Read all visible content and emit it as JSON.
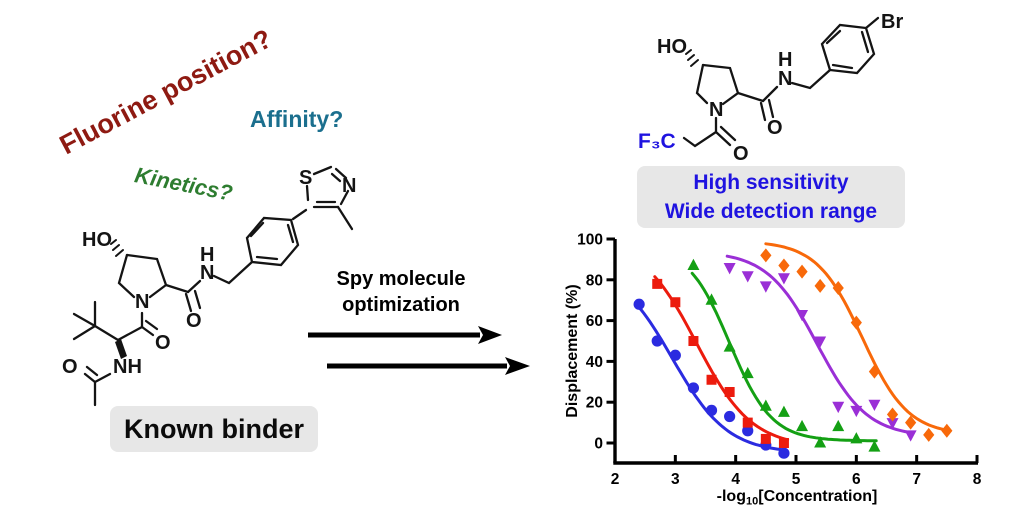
{
  "questions": {
    "fluorine": "Fluorine position?",
    "affinity": "Affinity?",
    "kinetics": "Kinetics?"
  },
  "known_binder_label": "Known binder",
  "arrow_label": {
    "line1": "Spy molecule",
    "line2": "optimization"
  },
  "result_box": {
    "line1": "High sensitivity",
    "line2": "Wide detection range"
  },
  "colors": {
    "fluorine_text": "#8e1a12",
    "affinity_text": "#1b6f8e",
    "kinetics_text": "#2e7d30",
    "highlight_text": "#1f13e0",
    "label_box_bg": "#e7e7e7"
  },
  "left_molecule": {
    "labels": {
      "ho": "HO",
      "s": "S",
      "n_thiazole": "N",
      "h_amide": "H",
      "n_amide": "N",
      "o_amide": "O",
      "n_ring": "N",
      "o_acyl": "O",
      "nh_acetamide": "NH",
      "o_acetyl": "O"
    }
  },
  "right_molecule": {
    "labels": {
      "ho": "HO",
      "f3c": "F₃C",
      "o_acyl": "O",
      "o_amide": "O",
      "h_amide": "H",
      "n_amide": "N",
      "n_ring": "N",
      "br": "Br"
    }
  },
  "chart_data": {
    "type": "scatter",
    "title": "",
    "ylabel": "Displacement (%)",
    "xlabel": "-log10[Concentration]",
    "xlabel_parts": {
      "prefix": "-log",
      "sub": "10",
      "suffix": "[Concentration]"
    },
    "xlim": [
      2,
      8
    ],
    "ylim": [
      -10,
      100
    ],
    "xticks": [
      2,
      3,
      4,
      5,
      6,
      7,
      8
    ],
    "yticks": [
      0,
      20,
      40,
      60,
      80,
      100
    ],
    "grid": false,
    "legend": "none",
    "series": [
      {
        "name": "blue-circles",
        "marker": "circle",
        "color": "#2b2be0",
        "points": [
          [
            2.4,
            68
          ],
          [
            2.7,
            50
          ],
          [
            3.0,
            43
          ],
          [
            3.3,
            27
          ],
          [
            3.6,
            16
          ],
          [
            3.9,
            13
          ],
          [
            4.2,
            6
          ],
          [
            4.5,
            -1
          ],
          [
            4.8,
            -5
          ]
        ],
        "fit": {
          "top": 88,
          "bottom": -5,
          "logec50": 2.95,
          "hill": 0.95,
          "range": [
            2.38,
            4.85
          ]
        }
      },
      {
        "name": "red-squares",
        "marker": "square",
        "color": "#ec1b0d",
        "points": [
          [
            2.7,
            78
          ],
          [
            3.0,
            69
          ],
          [
            3.3,
            50
          ],
          [
            3.6,
            31
          ],
          [
            3.9,
            25
          ],
          [
            4.2,
            10
          ],
          [
            4.5,
            2
          ],
          [
            4.8,
            0
          ]
        ],
        "fit": {
          "top": 100,
          "bottom": -2,
          "logec50": 3.35,
          "hill": 0.95,
          "range": [
            2.66,
            4.87
          ]
        }
      },
      {
        "name": "green-triangles",
        "marker": "triangle-up",
        "color": "#14a014",
        "points": [
          [
            3.3,
            87
          ],
          [
            3.6,
            70
          ],
          [
            3.9,
            47
          ],
          [
            4.2,
            34
          ],
          [
            4.5,
            18
          ],
          [
            4.8,
            15
          ],
          [
            5.1,
            8
          ],
          [
            5.4,
            0
          ],
          [
            5.7,
            8
          ],
          [
            6.0,
            2
          ],
          [
            6.3,
            -2
          ]
        ],
        "fit": {
          "top": 97,
          "bottom": 1,
          "logec50": 3.9,
          "hill": 1.25,
          "range": [
            3.28,
            6.35
          ]
        }
      },
      {
        "name": "purple-triangles",
        "marker": "triangle-down",
        "color": "#9a2fd6",
        "points": [
          [
            3.9,
            86
          ],
          [
            4.2,
            82
          ],
          [
            4.5,
            77
          ],
          [
            4.8,
            81
          ],
          [
            5.1,
            63
          ],
          [
            5.4,
            50
          ],
          [
            5.7,
            18
          ],
          [
            6.0,
            16
          ],
          [
            6.3,
            19
          ],
          [
            6.6,
            10
          ],
          [
            6.9,
            4
          ]
        ],
        "fit": {
          "top": 94,
          "bottom": 3,
          "logec50": 5.35,
          "hill": 1.05,
          "range": [
            3.86,
            6.95
          ]
        }
      },
      {
        "name": "orange-diamonds",
        "marker": "diamond",
        "color": "#f8690a",
        "points": [
          [
            4.5,
            92
          ],
          [
            4.8,
            87
          ],
          [
            5.1,
            84
          ],
          [
            5.4,
            77
          ],
          [
            5.7,
            76
          ],
          [
            6.0,
            59
          ],
          [
            6.3,
            35
          ],
          [
            6.6,
            14
          ],
          [
            6.9,
            10
          ],
          [
            7.2,
            4
          ],
          [
            7.5,
            6
          ]
        ],
        "fit": {
          "top": 99,
          "bottom": 4,
          "logec50": 6.1,
          "hill": 1.15,
          "range": [
            4.5,
            7.55
          ]
        }
      }
    ]
  }
}
